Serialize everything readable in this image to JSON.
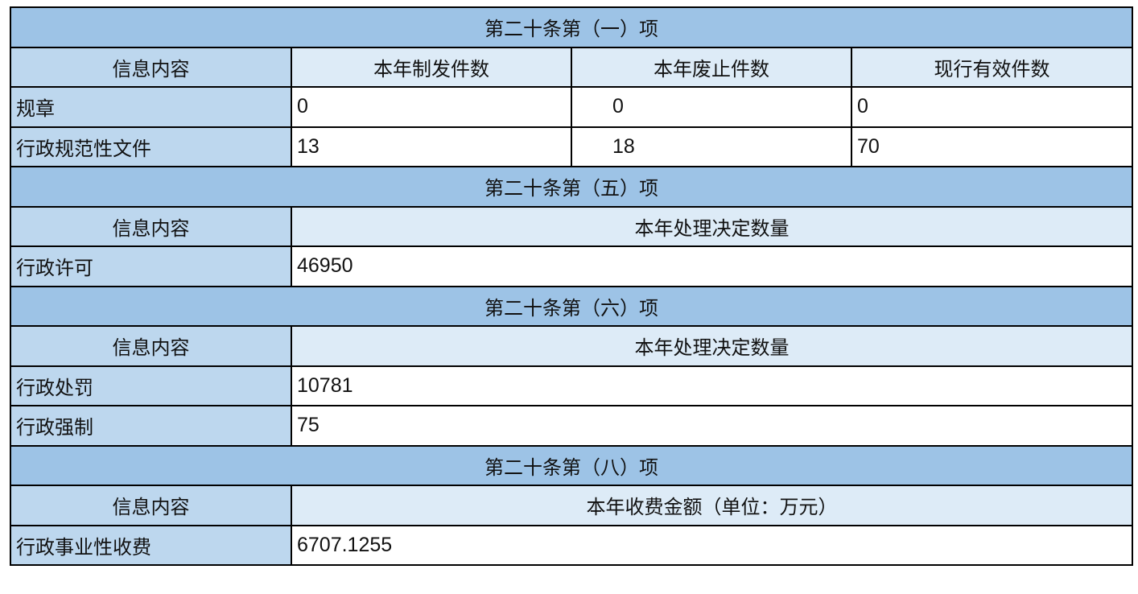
{
  "sections": [
    {
      "title": "第二十条第（一）项",
      "headers": [
        "信息内容",
        "本年制发件数",
        "本年废止件数",
        "现行有效件数"
      ],
      "rows": [
        {
          "label": "规章",
          "values": [
            "0",
            "0",
            "0"
          ]
        },
        {
          "label": "行政规范性文件",
          "values": [
            "13",
            "18",
            "70"
          ]
        }
      ]
    },
    {
      "title": "第二十条第（五）项",
      "headers": [
        "信息内容",
        "本年处理决定数量"
      ],
      "rows": [
        {
          "label": "行政许可",
          "value": "46950"
        }
      ]
    },
    {
      "title": "第二十条第（六）项",
      "headers": [
        "信息内容",
        "本年处理决定数量"
      ],
      "rows": [
        {
          "label": "行政处罚",
          "value": "10781"
        },
        {
          "label": "行政强制",
          "value": "75"
        }
      ]
    },
    {
      "title": "第二十条第（八）项",
      "headers": [
        "信息内容",
        "本年收费金额（单位：万元）"
      ],
      "rows": [
        {
          "label": "行政事业性收费",
          "value": "6707.1255"
        }
      ]
    }
  ],
  "colors": {
    "section_header": "#9dc3e6",
    "label_cell": "#bdd7ee",
    "column_header": "#ddebf7"
  }
}
